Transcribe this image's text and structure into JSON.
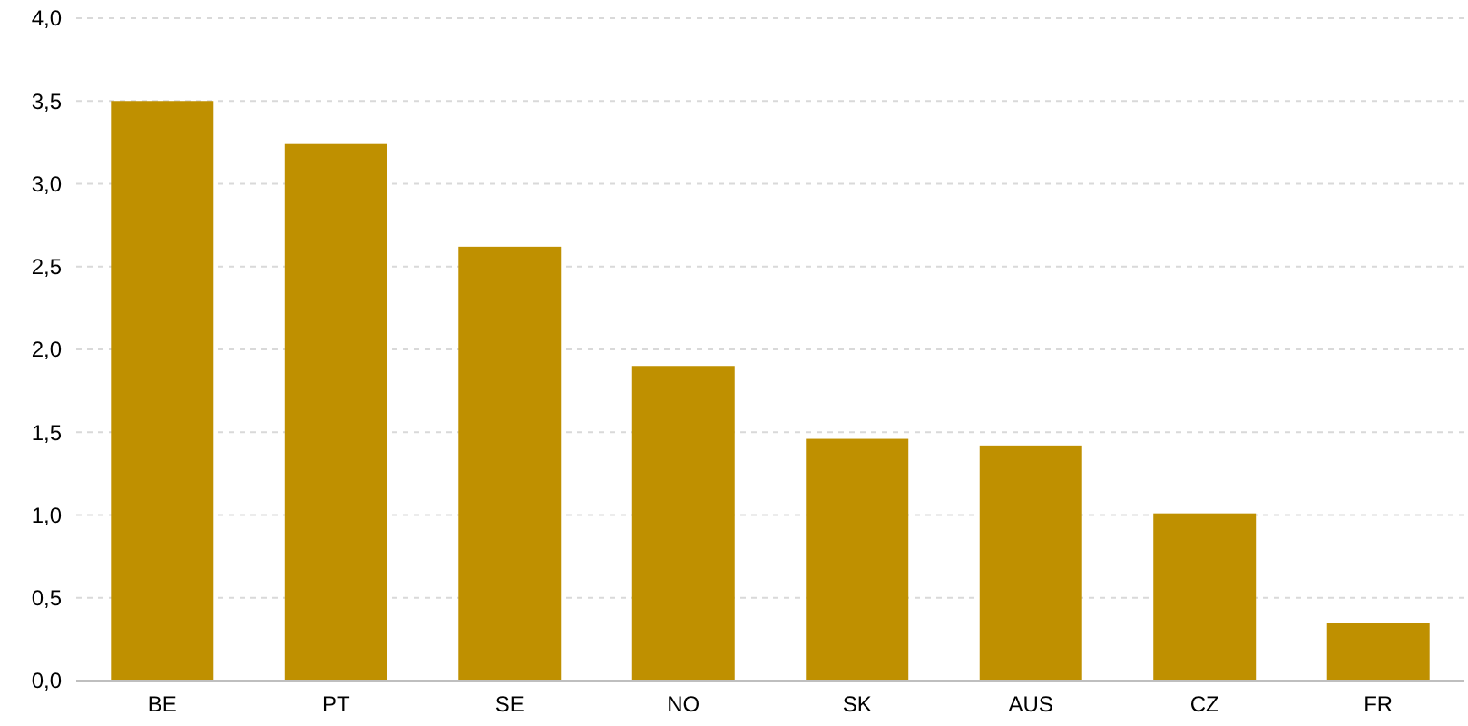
{
  "chart_data": {
    "type": "bar",
    "categories": [
      "BE",
      "PT",
      "SE",
      "NO",
      "SK",
      "AUS",
      "CZ",
      "FR"
    ],
    "values": [
      3.5,
      3.24,
      2.62,
      1.9,
      1.46,
      1.42,
      1.01,
      0.35
    ],
    "color": "#bf9000",
    "ylim": [
      0,
      4
    ],
    "yticks": [
      {
        "value": 0,
        "label": "0,0"
      },
      {
        "value": 0.5,
        "label": "0,5"
      },
      {
        "value": 1,
        "label": "1,0"
      },
      {
        "value": 1.5,
        "label": "1,5"
      },
      {
        "value": 2,
        "label": "2,0"
      },
      {
        "value": 2.5,
        "label": "2,5"
      },
      {
        "value": 3,
        "label": "3,0"
      },
      {
        "value": 3.5,
        "label": "3,5"
      },
      {
        "value": 4,
        "label": "4,0"
      }
    ],
    "grid": "y"
  }
}
